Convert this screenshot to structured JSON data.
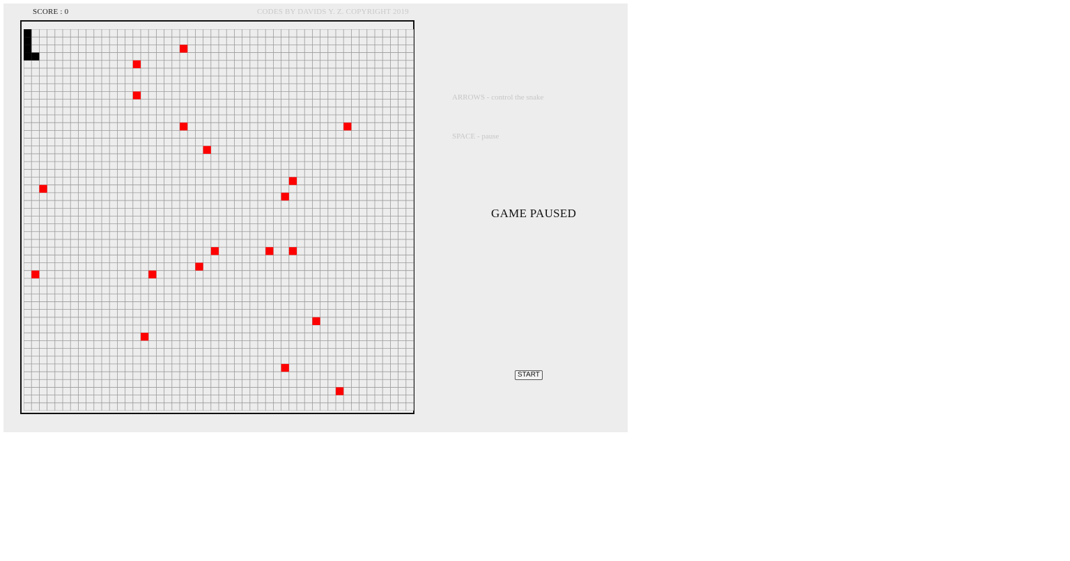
{
  "header": {
    "score_label": "SCORE : 0",
    "copyright": "CODES BY DAVIDS Y. Z. COPYRIGHT 2019"
  },
  "board": {
    "columns": 50,
    "rows": 49,
    "grid_line_color": "#9a9a9a",
    "cell_background": "#ededed",
    "snake_color": "#000000",
    "food_color": "#ff0000",
    "snake": [
      [
        0,
        0
      ],
      [
        0,
        1
      ],
      [
        0,
        2
      ],
      [
        0,
        3
      ],
      [
        1,
        3
      ]
    ],
    "food": [
      [
        20,
        2
      ],
      [
        14,
        4
      ],
      [
        14,
        8
      ],
      [
        20,
        12
      ],
      [
        41,
        12
      ],
      [
        23,
        15
      ],
      [
        34,
        19
      ],
      [
        2,
        20
      ],
      [
        33,
        21
      ],
      [
        24,
        28
      ],
      [
        31,
        28
      ],
      [
        34,
        28
      ],
      [
        22,
        30
      ],
      [
        1,
        31
      ],
      [
        16,
        31
      ],
      [
        37,
        37
      ],
      [
        15,
        39
      ],
      [
        33,
        43
      ],
      [
        40,
        46
      ]
    ]
  },
  "help": {
    "arrows": "ARROWS - control the snake",
    "space": "SPACE - pause"
  },
  "status": "GAME PAUSED",
  "controls": {
    "start_label": "START"
  }
}
